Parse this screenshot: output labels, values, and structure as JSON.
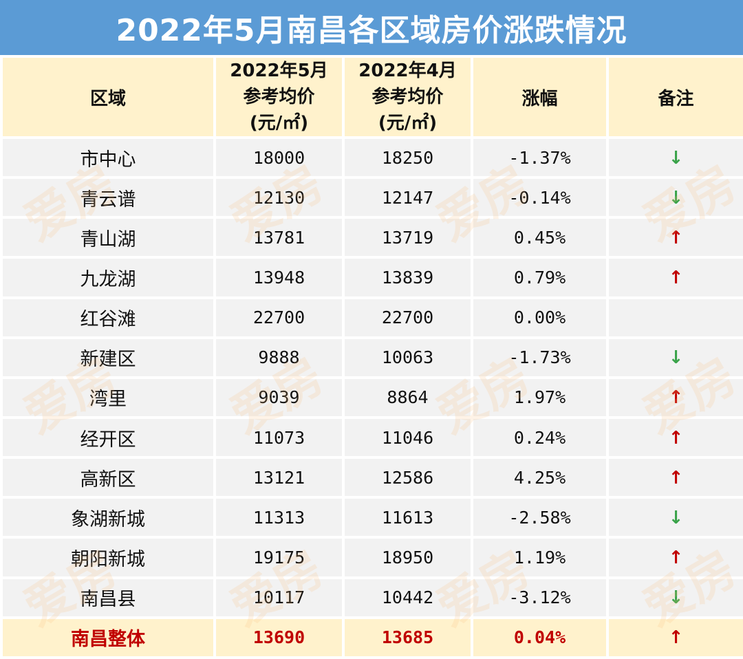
{
  "title": "2022年5月南昌各区域房价涨跌情况",
  "colors": {
    "title_bg": "#5b9bd5",
    "header_bg": "#fff2cc",
    "row_bg": "#f2f2f2",
    "up": "#c00000",
    "down": "#3aa34a"
  },
  "watermark_text": "爱房",
  "header": {
    "region": "区域",
    "may": [
      "2022年5月",
      "参考均价",
      "(元/㎡)"
    ],
    "apr": [
      "2022年4月",
      "参考均价",
      "(元/㎡)"
    ],
    "change": "涨幅",
    "note": "备注"
  },
  "rows": [
    {
      "region": "市中心",
      "may": "18000",
      "apr": "18250",
      "change": "-1.37%",
      "arrow": "↓"
    },
    {
      "region": "青云谱",
      "may": "12130",
      "apr": "12147",
      "change": "-0.14%",
      "arrow": "↓"
    },
    {
      "region": "青山湖",
      "may": "13781",
      "apr": "13719",
      "change": "0.45%",
      "arrow": "↑"
    },
    {
      "region": "九龙湖",
      "may": "13948",
      "apr": "13839",
      "change": "0.79%",
      "arrow": "↑"
    },
    {
      "region": "红谷滩",
      "may": "22700",
      "apr": "22700",
      "change": "0.00%",
      "arrow": ""
    },
    {
      "region": "新建区",
      "may": "9888",
      "apr": "10063",
      "change": "-1.73%",
      "arrow": "↓"
    },
    {
      "region": "湾里",
      "may": "9039",
      "apr": "8864",
      "change": "1.97%",
      "arrow": "↑"
    },
    {
      "region": "经开区",
      "may": "11073",
      "apr": "11046",
      "change": "0.24%",
      "arrow": "↑"
    },
    {
      "region": "高新区",
      "may": "13121",
      "apr": "12586",
      "change": "4.25%",
      "arrow": "↑"
    },
    {
      "region": "象湖新城",
      "may": "11313",
      "apr": "11613",
      "change": "-2.58%",
      "arrow": "↓"
    },
    {
      "region": "朝阳新城",
      "may": "19175",
      "apr": "18950",
      "change": "1.19%",
      "arrow": "↑"
    },
    {
      "region": "南昌县",
      "may": "10117",
      "apr": "10442",
      "change": "-3.12%",
      "arrow": "↓"
    }
  ],
  "total": {
    "region": "南昌整体",
    "may": "13690",
    "apr": "13685",
    "change": "0.04%",
    "arrow": "↑"
  }
}
